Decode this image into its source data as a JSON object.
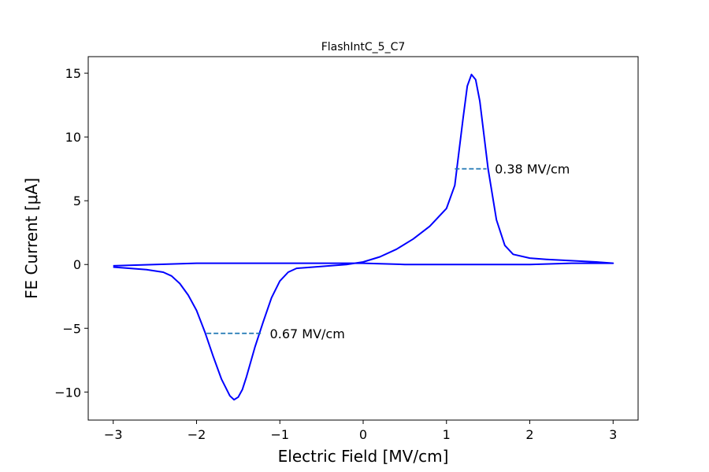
{
  "chart_data": {
    "type": "line",
    "title": "FlashIntC_5_C7",
    "xlabel": "Electric Field [MV/cm]",
    "ylabel": "FE Current [μA]",
    "xlim": [
      -3.3,
      3.3
    ],
    "ylim": [
      -12.2,
      16.3
    ],
    "xticks": [
      -3,
      -2,
      -1,
      0,
      1,
      2,
      3
    ],
    "xtick_labels": [
      "−3",
      "−2",
      "−1",
      "0",
      "1",
      "2",
      "3"
    ],
    "yticks": [
      -10,
      -5,
      0,
      5,
      10,
      15
    ],
    "ytick_labels": [
      "−10",
      "−5",
      "0",
      "5",
      "10",
      "15"
    ],
    "grid": false,
    "series": [
      {
        "color": "#0000ff",
        "x": [
          -3.0,
          -2.8,
          -2.6,
          -2.4,
          -2.3,
          -2.2,
          -2.1,
          -2.0,
          -1.9,
          -1.8,
          -1.7,
          -1.6,
          -1.55,
          -1.5,
          -1.45,
          -1.4,
          -1.3,
          -1.2,
          -1.1,
          -1.0,
          -0.9,
          -0.8,
          -0.6,
          -0.4,
          -0.2,
          0.0,
          0.2,
          0.4,
          0.6,
          0.8,
          1.0,
          1.1,
          1.2,
          1.25,
          1.3,
          1.35,
          1.4,
          1.5,
          1.6,
          1.7,
          1.8,
          2.0,
          2.2,
          2.5,
          2.8,
          3.0,
          2.5,
          2.0,
          1.5,
          1.0,
          0.5,
          0.0,
          -0.5,
          -1.0,
          -1.5,
          -2.0,
          -2.5,
          -3.0
        ],
        "y": [
          -0.2,
          -0.3,
          -0.4,
          -0.6,
          -0.9,
          -1.5,
          -2.4,
          -3.6,
          -5.3,
          -7.2,
          -9.0,
          -10.3,
          -10.6,
          -10.4,
          -9.8,
          -8.8,
          -6.5,
          -4.5,
          -2.6,
          -1.3,
          -0.6,
          -0.3,
          -0.2,
          -0.1,
          0.0,
          0.2,
          0.6,
          1.2,
          2.0,
          3.0,
          4.4,
          6.2,
          11.5,
          14.0,
          14.9,
          14.5,
          12.8,
          7.5,
          3.5,
          1.5,
          0.8,
          0.5,
          0.4,
          0.3,
          0.2,
          0.1,
          0.1,
          0.0,
          0.0,
          0.0,
          0.0,
          0.1,
          0.1,
          0.1,
          0.1,
          0.1,
          0.0,
          -0.1
        ]
      }
    ],
    "annotations": [
      {
        "text": "0.38 MV/cm",
        "x0": 1.1,
        "x1": 1.48,
        "y": 7.5,
        "text_x": 1.58,
        "text_y": 7.5,
        "line_color": "#1f77b4",
        "line_style": "dashed"
      },
      {
        "text": "0.67 MV/cm",
        "x0": -1.88,
        "x1": -1.21,
        "y": -5.4,
        "text_x": -1.12,
        "text_y": -5.4,
        "line_color": "#1f77b4",
        "line_style": "dashed"
      }
    ]
  }
}
